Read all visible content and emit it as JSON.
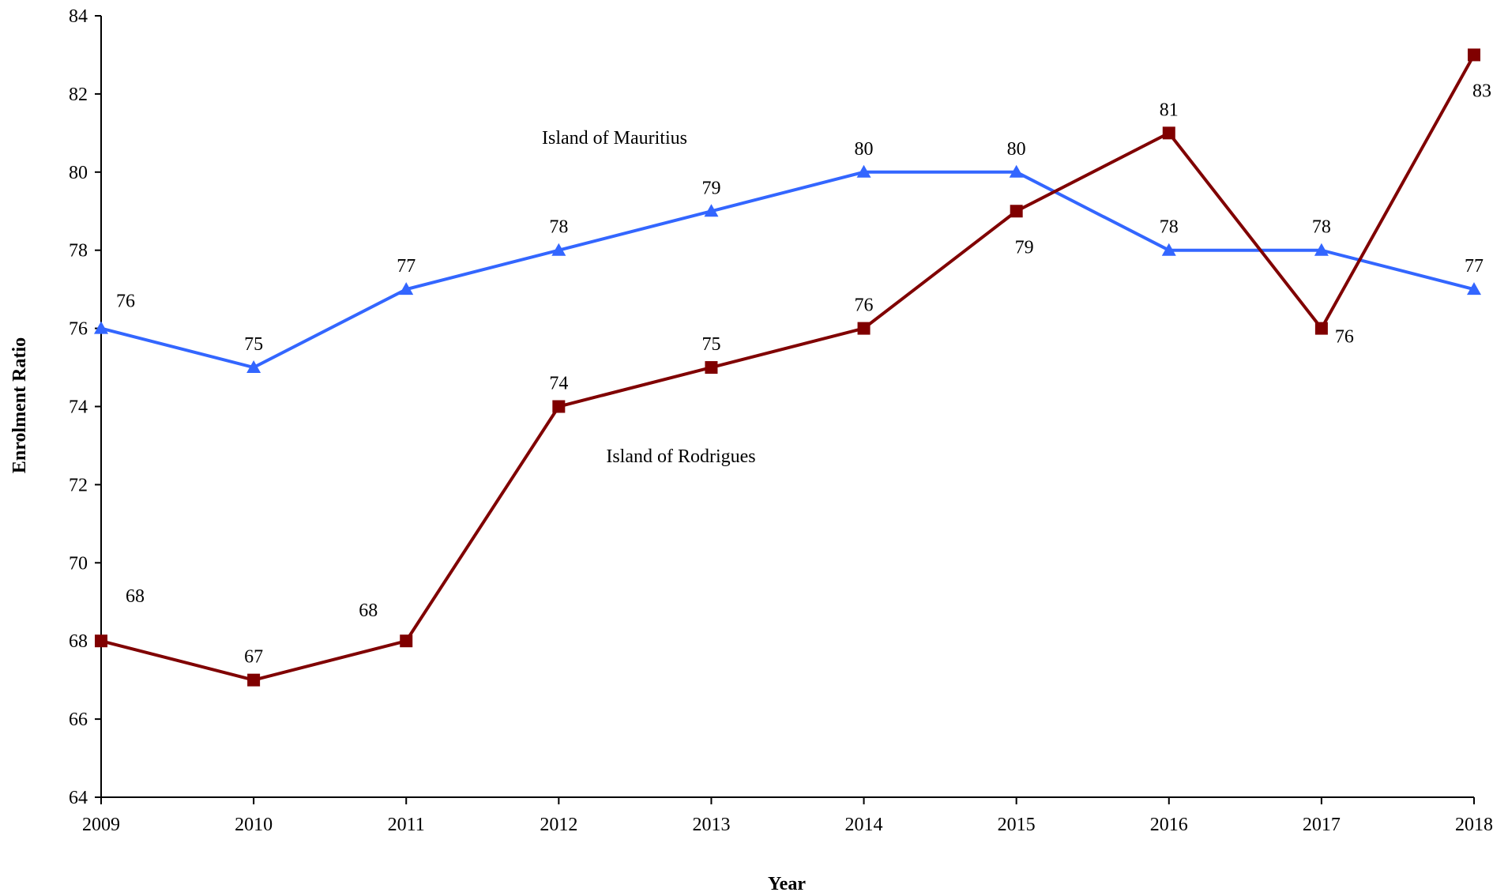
{
  "chart_data": {
    "type": "line",
    "title": "",
    "xlabel": "Year",
    "ylabel": "Enrolment Ratio",
    "x": [
      "2009",
      "2010",
      "2011",
      "2012",
      "2013",
      "2014",
      "2015",
      "2016",
      "2017",
      "2018"
    ],
    "ylim": [
      64,
      84
    ],
    "yticks": [
      64,
      66,
      68,
      70,
      72,
      74,
      76,
      78,
      80,
      82,
      84
    ],
    "grid": false,
    "legend": "none",
    "series": [
      {
        "name": "Island of Mauritius",
        "color": "#3366FF",
        "marker": "triangle",
        "values": [
          76,
          75,
          77,
          78,
          79,
          80,
          80,
          78,
          78,
          77
        ],
        "label_position": [
          "above-right",
          "above",
          "above",
          "above",
          "above",
          "above",
          "above",
          "above",
          "above",
          "above"
        ]
      },
      {
        "name": "Island of Rodrigues",
        "color": "#800000",
        "marker": "square",
        "values": [
          68,
          67,
          68,
          74,
          75,
          76,
          79,
          81,
          76,
          83
        ],
        "label_position": [
          "above-right-far",
          "above",
          "above-left-far",
          "above",
          "above",
          "above",
          "below",
          "above",
          "right",
          "below"
        ]
      }
    ]
  }
}
